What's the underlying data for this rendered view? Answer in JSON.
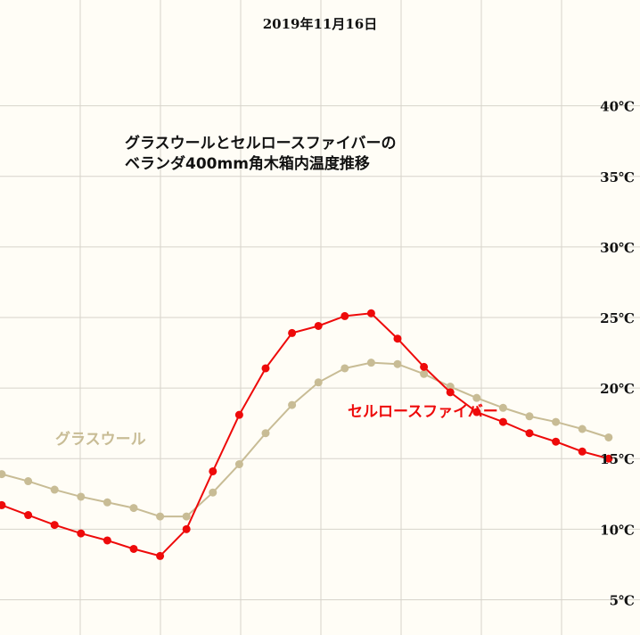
{
  "chart_data": {
    "type": "line",
    "date": "2019年11月16日",
    "title_lines": [
      "グラスウールとセルロースファイバーの",
      "ベランダ400mm角木箱内温度推移"
    ],
    "yunit": "℃",
    "ylim": [
      2.5,
      47.5
    ],
    "yticks": [
      5,
      10,
      15,
      20,
      25,
      30,
      35,
      40
    ],
    "ytick_labels": [
      "5℃",
      "10℃",
      "15℃",
      "20℃",
      "25℃",
      "30℃",
      "35℃",
      "40℃"
    ],
    "x": [
      0,
      1,
      2,
      3,
      4,
      5,
      6,
      7,
      8,
      9,
      10,
      11,
      12,
      13,
      14,
      15,
      16,
      17,
      18,
      19,
      20,
      21,
      22,
      23
    ],
    "series": [
      {
        "name": "グラスウール",
        "color": "#c8bc95",
        "values": [
          13.9,
          13.4,
          12.8,
          12.3,
          11.9,
          11.5,
          10.9,
          10.9,
          12.6,
          14.6,
          16.8,
          18.8,
          20.4,
          21.4,
          21.8,
          21.7,
          21.0,
          20.1,
          19.3,
          18.6,
          18.0,
          17.6,
          17.1,
          16.5
        ]
      },
      {
        "name": "セルロースファイバー",
        "color": "#ee0a0a",
        "values": [
          11.7,
          11.0,
          10.3,
          9.7,
          9.2,
          8.6,
          8.1,
          10.0,
          14.1,
          18.1,
          21.4,
          23.9,
          24.4,
          25.1,
          25.3,
          23.5,
          21.5,
          19.7,
          18.3,
          17.6,
          16.8,
          16.2,
          15.5,
          15.0
        ]
      }
    ]
  }
}
